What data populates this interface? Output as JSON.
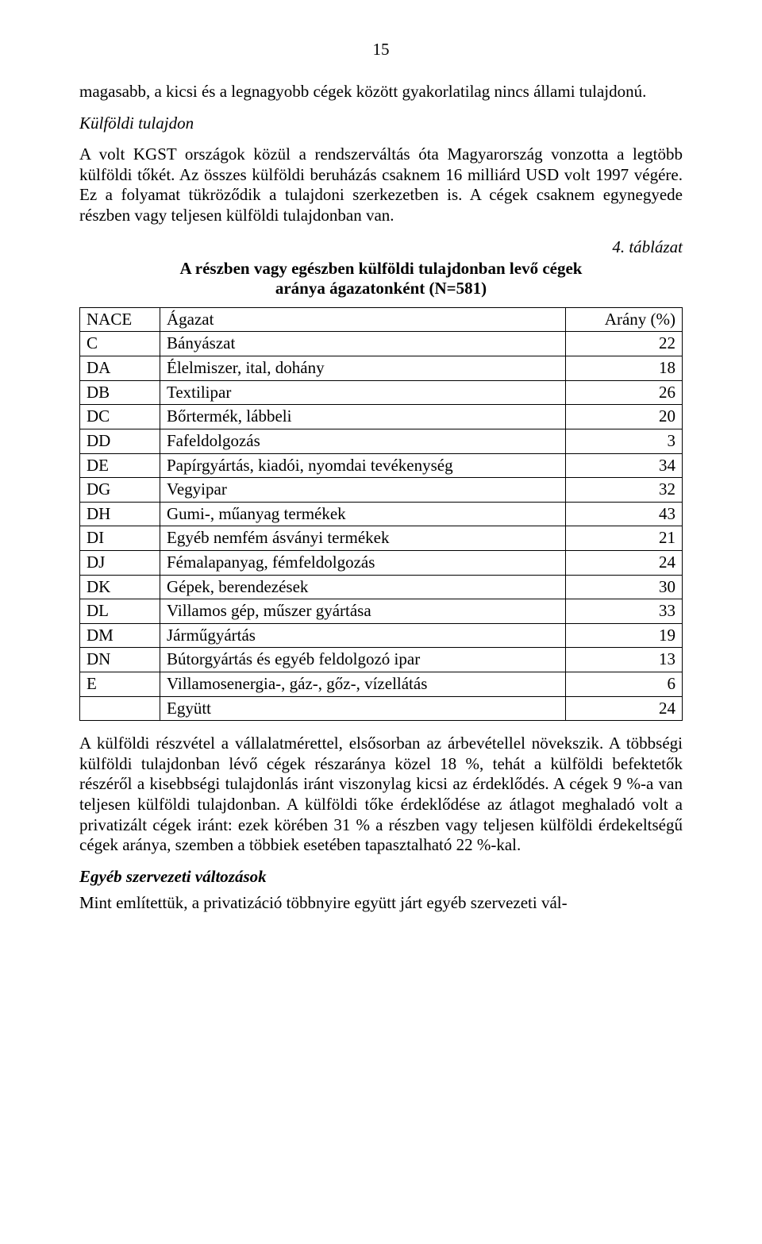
{
  "pageNumber": "15",
  "para1": "magasabb, a kicsi és a legnagyobb cégek között gyakorlatilag nincs állami tulajdonú.",
  "heading1": "Külföldi tulajdon",
  "para2": "A volt KGST országok közül a rendszerváltás óta Magyarország vonzotta a legtöbb külföldi tőkét. Az összes külföldi beruházás csaknem 16 milliárd USD volt 1997 végére. Ez a folyamat tükröződik a tulajdoni szerkezetben is. A cégek csaknem egynegyede részben vagy teljesen külföldi tulajdonban van.",
  "caption": "4. táblázat",
  "tableTitle1": "A részben vagy egészben külföldi tulajdonban levő cégek",
  "tableTitle2": "aránya ágazatonként (N=581)",
  "table": {
    "columns": [
      "NACE",
      "Ágazat",
      "Arány (%)"
    ],
    "rows": [
      [
        "C",
        "Bányászat",
        "22"
      ],
      [
        "DA",
        "Élelmiszer, ital, dohány",
        "18"
      ],
      [
        "DB",
        "Textilipar",
        "26"
      ],
      [
        "DC",
        "Bőrtermék, lábbeli",
        "20"
      ],
      [
        "DD",
        "Fafeldolgozás",
        "3"
      ],
      [
        "DE",
        "Papírgyártás, kiadói, nyomdai tevékenység",
        "34"
      ],
      [
        "DG",
        "Vegyipar",
        "32"
      ],
      [
        "DH",
        "Gumi-, műanyag termékek",
        "43"
      ],
      [
        "DI",
        "Egyéb nemfém ásványi termékek",
        "21"
      ],
      [
        "DJ",
        "Fémalapanyag, fémfeldolgozás",
        "24"
      ],
      [
        "DK",
        "Gépek, berendezések",
        "30"
      ],
      [
        "DL",
        "Villamos gép, műszer gyártása",
        "33"
      ],
      [
        "DM",
        "Járműgyártás",
        "19"
      ],
      [
        "DN",
        "Bútorgyártás és egyéb feldolgozó ipar",
        "13"
      ],
      [
        "E",
        "Villamosenergia-, gáz-, gőz-, vízellátás",
        "6"
      ]
    ],
    "totalRow": [
      "",
      "Együtt",
      "24"
    ]
  },
  "para3": "A külföldi részvétel a vállalatmérettel, elsősorban az árbevétellel növekszik. A többségi külföldi tulajdonban lévő cégek részaránya közel 18 %, tehát a külföldi befektetők részéről a kisebbségi tulajdonlás iránt viszonylag kicsi az érdeklődés. A cégek 9 %-a van teljesen külföldi tulajdonban. A külföldi tőke érdeklődése az átlagot meghaladó volt a privatizált cégek iránt: ezek körében 31 % a részben vagy teljesen külföldi érdekeltségű cégek aránya, szemben a többiek esetében tapasztalható 22 %-kal.",
  "heading2": "Egyéb szervezeti változások",
  "para4": "Mint említettük, a privatizáció többnyire együtt járt egyéb szervezeti vál-"
}
